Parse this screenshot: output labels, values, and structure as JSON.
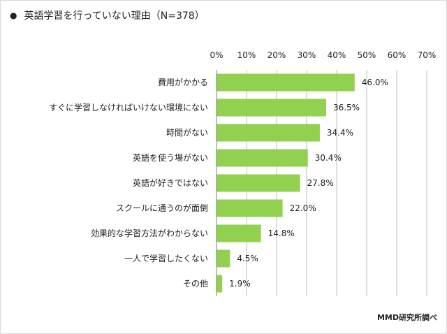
{
  "header": {
    "bullet_glyph": "●",
    "title": "英語学習を行っていない理由（N=378）"
  },
  "source": "MMD研究所調べ",
  "colors": {
    "bar": "#92d050",
    "grid": "#bfbfbf",
    "text": "#222222"
  },
  "chart_data": {
    "type": "bar",
    "orientation": "horizontal",
    "title": "英語学習を行っていない理由（N=378）",
    "categories": [
      "費用がかかる",
      "すぐに学習しなければいけない環境にない",
      "時間がない",
      "英語を使う場がない",
      "英語が好きではない",
      "スクールに通うのが面倒",
      "効果的な学習方法がわからない",
      "一人で学習したくない",
      "その他"
    ],
    "values": [
      46.0,
      36.5,
      34.4,
      30.4,
      27.8,
      22.0,
      14.8,
      4.5,
      1.9
    ],
    "value_labels": [
      "46.0%",
      "36.5%",
      "34.4%",
      "30.4%",
      "27.8%",
      "22.0%",
      "14.8%",
      "4.5%",
      "1.9%"
    ],
    "xlim": [
      0,
      70
    ],
    "x_ticks": [
      "0%",
      "10%",
      "20%",
      "30%",
      "40%",
      "50%",
      "60%",
      "70%"
    ],
    "grid": true,
    "legend": "none"
  }
}
